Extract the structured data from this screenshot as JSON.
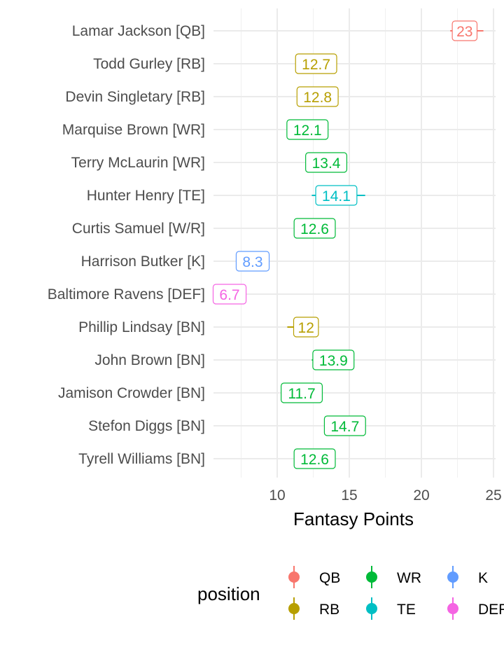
{
  "chart_data": {
    "type": "point-range",
    "xlabel": "Fantasy Points",
    "ylabel": "",
    "title": "",
    "xlim": [
      5.5,
      25
    ],
    "xticks": [
      10,
      15,
      20,
      25
    ],
    "grid": true,
    "legend": {
      "title": "position",
      "placement": "bottom",
      "entries": [
        {
          "key": "QB",
          "label": "QB",
          "color": "#F8766D"
        },
        {
          "key": "WR",
          "label": "WR",
          "color": "#00BA38"
        },
        {
          "key": "K",
          "label": "K",
          "color": "#619CFF"
        },
        {
          "key": "RB",
          "label": "RB",
          "color": "#B79F00"
        },
        {
          "key": "TE",
          "label": "TE",
          "color": "#00BFC4"
        },
        {
          "key": "DEF",
          "label": "DEF",
          "color": "#F564E3"
        }
      ]
    },
    "players": [
      {
        "name": "Lamar Jackson [QB]",
        "position": "QB",
        "value": 23,
        "label": "23",
        "low": 22.0,
        "high": 24.3
      },
      {
        "name": "Todd Gurley [RB]",
        "position": "RB",
        "value": 12.7,
        "label": "12.7",
        "low": 12.0,
        "high": 13.4
      },
      {
        "name": "Devin Singletary [RB]",
        "position": "RB",
        "value": 12.8,
        "label": "12.8",
        "low": 12.2,
        "high": 13.4
      },
      {
        "name": "Marquise Brown [WR]",
        "position": "WR",
        "value": 12.1,
        "label": "12.1",
        "low": 11.5,
        "high": 12.7
      },
      {
        "name": "Terry McLaurin [WR]",
        "position": "WR",
        "value": 13.4,
        "label": "13.4",
        "low": 12.8,
        "high": 14.0
      },
      {
        "name": "Hunter Henry [TE]",
        "position": "TE",
        "value": 14.1,
        "label": "14.1",
        "low": 12.4,
        "high": 16.1
      },
      {
        "name": "Curtis Samuel [W/R]",
        "position": "WR",
        "value": 12.6,
        "label": "12.6",
        "low": 12.0,
        "high": 13.2
      },
      {
        "name": "Harrison Butker [K]",
        "position": "K",
        "value": 8.3,
        "label": "8.3",
        "low": 7.8,
        "high": 8.8
      },
      {
        "name": "Baltimore Ravens [DEF]",
        "position": "DEF",
        "value": 6.7,
        "label": "6.7",
        "low": 6.2,
        "high": 7.2
      },
      {
        "name": "Phillip Lindsay [BN]",
        "position": "RB",
        "value": 12,
        "label": "12",
        "low": 10.7,
        "high": 12.5
      },
      {
        "name": "John Brown [BN]",
        "position": "WR",
        "value": 13.9,
        "label": "13.9",
        "low": 12.4,
        "high": 14.4
      },
      {
        "name": "Jamison Crowder [BN]",
        "position": "WR",
        "value": 11.7,
        "label": "11.7",
        "low": 11.2,
        "high": 12.2
      },
      {
        "name": "Stefon Diggs [BN]",
        "position": "WR",
        "value": 14.7,
        "label": "14.7",
        "low": 14.2,
        "high": 15.2
      },
      {
        "name": "Tyrell Williams [BN]",
        "position": "WR",
        "value": 12.6,
        "label": "12.6",
        "low": 12.1,
        "high": 13.1
      }
    ]
  }
}
